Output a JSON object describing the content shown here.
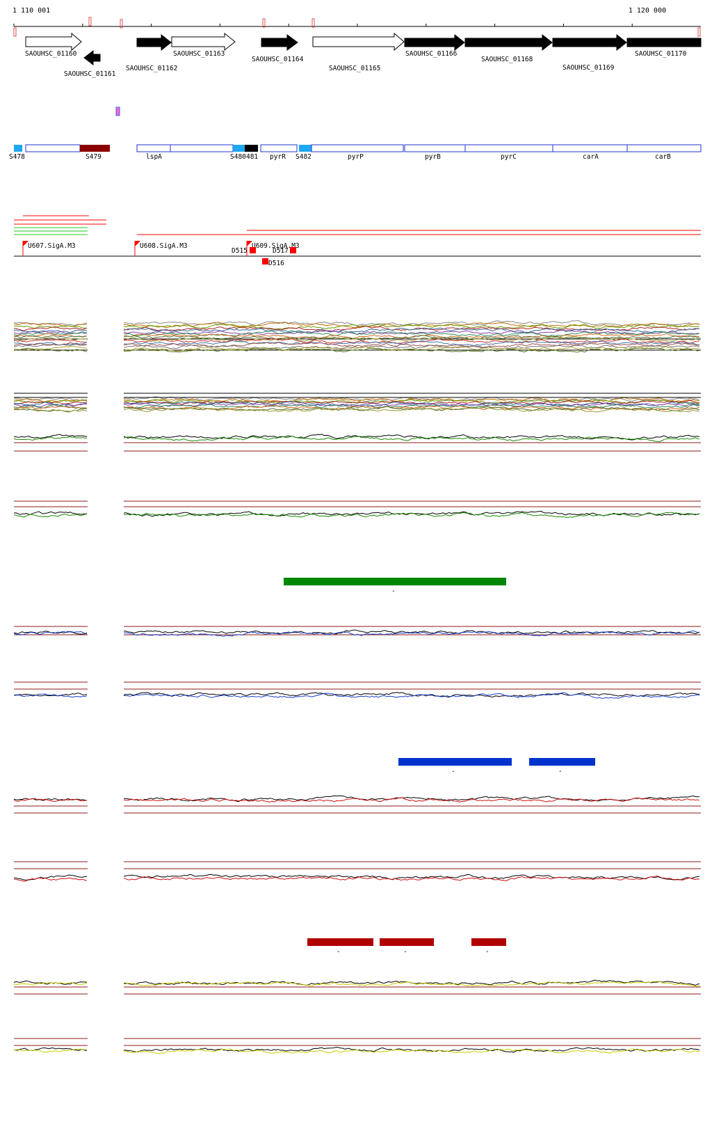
{
  "coordinates": {
    "start": "1 110 001",
    "end": "1 120 000"
  },
  "colors": {
    "gene_fill": "#000000",
    "gene_outline": "#000000",
    "segment_outline": "#2233cc",
    "segment_light": "#1ea8f0",
    "segment_dark": "#8b0000",
    "tss": "#ff0000",
    "hline": "#8b1a1a",
    "green": "#1a8a00",
    "blue": "#1b3fcc",
    "red": "#d01010",
    "yellow": "#cccc00",
    "bar_green": "#008800",
    "bar_blue": "#0033cc",
    "bar_red": "#b00000"
  },
  "genes": [
    {
      "id": "SAOUHSC_01160",
      "strand": "+",
      "filled": false
    },
    {
      "id": "SAOUHSC_01161",
      "strand": "-",
      "filled": true
    },
    {
      "id": "SAOUHSC_01162",
      "strand": "+",
      "filled": true
    },
    {
      "id": "SAOUHSC_01163",
      "strand": "+",
      "filled": false
    },
    {
      "id": "SAOUHSC_01164",
      "strand": "+",
      "filled": true
    },
    {
      "id": "SAOUHSC_01165",
      "strand": "+",
      "filled": false
    },
    {
      "id": "SAOUHSC_01166",
      "strand": "+",
      "filled": true
    },
    {
      "id": "SAOUHSC_01168",
      "strand": "+",
      "filled": true
    },
    {
      "id": "SAOUHSC_01169",
      "strand": "+",
      "filled": true
    },
    {
      "id": "SAOUHSC_01170",
      "strand": "+",
      "filled": true
    }
  ],
  "segments": [
    {
      "label": "S478"
    },
    {
      "label": "S479"
    },
    {
      "label": "lspA"
    },
    {
      "label": "S480"
    },
    {
      "label": "481"
    },
    {
      "label": "pyrR"
    },
    {
      "label": "S482"
    },
    {
      "label": "pyrP"
    },
    {
      "label": "pyrB"
    },
    {
      "label": "pyrC"
    },
    {
      "label": "carA"
    },
    {
      "label": "carB"
    }
  ],
  "tss_sites": [
    {
      "label": "U607.SigA.M3"
    },
    {
      "label": "U608.SigA.M3"
    },
    {
      "label": "U609.SigA.M3"
    }
  ],
  "downshifts": [
    {
      "label": "D515"
    },
    {
      "label": "D517"
    },
    {
      "label": "D516"
    }
  ],
  "bar_marks": [
    "-",
    "-",
    "-",
    "-",
    "-",
    "-"
  ]
}
